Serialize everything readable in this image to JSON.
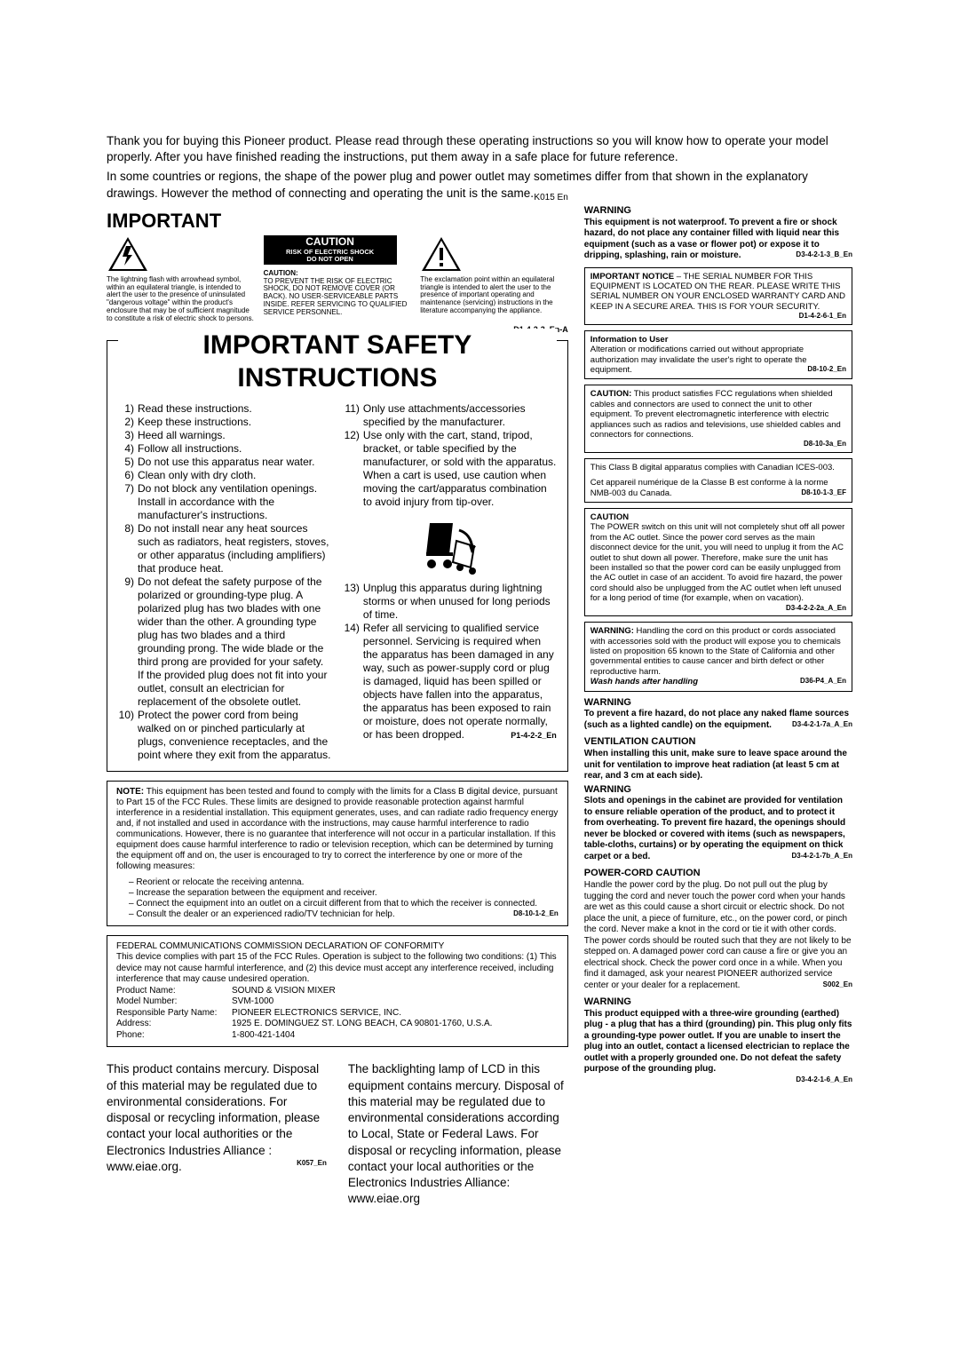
{
  "intro": {
    "p1": "Thank you for buying this Pioneer product. Please read through these operating instructions so you will know how to operate your model properly. After you have finished reading the instructions, put them away in a safe place for future reference.",
    "p2": "In some countries or regions, the shape of the power plug and power outlet may sometimes differ from that shown in the explanatory drawings. However the method of connecting and operating the unit is the same.",
    "code": "K015 En"
  },
  "important": {
    "title": "IMPORTANT",
    "caution_label": "CAUTION",
    "caution_sub1": "RISK OF ELECTRIC SHOCK",
    "caution_sub2": "DO NOT OPEN",
    "tri1": "The lightning flash with arrowhead symbol, within an equilateral triangle, is intended to alert the user to the presence of uninsulated \"dangerous voltage\" within the product's enclosure that may be of sufficient magnitude to constitute a risk of electric shock to persons.",
    "tri2_head": "CAUTION:",
    "tri2": "TO PREVENT THE RISK OF ELECTRIC SHOCK, DO NOT REMOVE COVER (OR BACK). NO USER-SERVICEABLE PARTS INSIDE. REFER SERVICING TO QUALIFIED SERVICE PERSONNEL.",
    "tri3": "The exclamation point within an equilateral triangle is intended to alert the user to the presence of important operating and maintenance (servicing) instructions in the literature accompanying the appliance.",
    "code": "D1-4-2-3_En-A"
  },
  "safety": {
    "title": "IMPORTANT SAFETY INSTRUCTIONS",
    "col1": [
      {
        "n": "1)",
        "t": "Read these instructions."
      },
      {
        "n": "2)",
        "t": "Keep these instructions."
      },
      {
        "n": "3)",
        "t": "Heed all warnings."
      },
      {
        "n": "4)",
        "t": "Follow all instructions."
      },
      {
        "n": "5)",
        "t": "Do not use this apparatus near water."
      },
      {
        "n": "6)",
        "t": "Clean only with dry cloth."
      },
      {
        "n": "7)",
        "t": "Do not block any ventilation openings. Install in accordance with the manufacturer's instructions."
      },
      {
        "n": "8)",
        "t": "Do not install near any heat sources such as radiators, heat registers, stoves, or other apparatus (including amplifiers) that produce heat."
      },
      {
        "n": "9)",
        "t": "Do not defeat the safety purpose of the polarized or grounding-type plug. A polarized plug has two blades with one wider than the other. A grounding type plug has two blades and a third grounding prong. The wide blade or the third prong are provided for your safety. If the provided plug does not fit into your outlet, consult an electrician for replacement of the obsolete outlet."
      },
      {
        "n": "10)",
        "t": "Protect the power cord from being walked on or pinched particularly at plugs, convenience receptacles, and the point where they exit from the apparatus."
      }
    ],
    "col2": [
      {
        "n": "11)",
        "t": "Only use attachments/accessories specified by the manufacturer."
      },
      {
        "n": "12)",
        "t": "Use only with the cart, stand, tripod, bracket, or table specified by the manufacturer, or sold with the apparatus. When a cart is used, use caution when moving the cart/apparatus combination to avoid injury from tip-over."
      },
      {
        "n": "13)",
        "t": "Unplug this apparatus during lightning storms or when unused for long periods of time."
      },
      {
        "n": "14)",
        "t": "Refer all servicing to qualified service personnel. Servicing is required when the apparatus has been damaged in any way, such as power-supply cord or plug is damaged, liquid has been spilled or objects have fallen into the apparatus, the apparatus has been exposed to rain or moisture, does not operate normally, or has been dropped."
      }
    ],
    "code": "P1-4-2-2_En"
  },
  "note": {
    "head": "NOTE:",
    "body": "This equipment has been tested and found to comply with the limits for a Class B digital device, pursuant to Part 15 of the FCC Rules. These limits are designed to provide reasonable protection against harmful interference in a residential installation. This equipment generates, uses, and can radiate radio frequency energy and, if not installed and used in accordance with the instructions, may cause harmful interference to radio communications. However, there is no guarantee that interference will not occur in a particular installation. If this equipment does cause harmful interference to radio or television reception, which can be determined by turning the equipment off and on, the user is encouraged to try to correct the interference by one or more of the following measures:",
    "b1": "– Reorient or relocate the receiving antenna.",
    "b2": "– Increase the separation between the equipment and receiver.",
    "b3": "– Connect the equipment into an outlet on a circuit different from that to which the receiver is connected.",
    "b4": "– Consult the dealer or an experienced radio/TV technician for help.",
    "code": "D8-10-1-2_En"
  },
  "fcc": {
    "title": "FEDERAL COMMUNICATIONS COMMISSION DECLARATION OF CONFORMITY",
    "body": "This device complies with part 15 of the FCC Rules. Operation is subject to the following two conditions: (1) This device may not cause harmful interference, and (2) this device must accept any interference received, including interference that may cause undesired operation.",
    "rows": [
      {
        "l": "Product Name:",
        "v": "SOUND & VISION MIXER"
      },
      {
        "l": "Model Number:",
        "v": "SVM-1000"
      },
      {
        "l": "Responsible Party Name:",
        "v": "PIONEER ELECTRONICS SERVICE, INC."
      },
      {
        "l": "Address:",
        "v": "1925 E. DOMINGUEZ ST. LONG BEACH, CA 90801-1760, U.S.A."
      },
      {
        "l": "Phone:",
        "v": "1-800-421-1404"
      }
    ]
  },
  "mercury": {
    "p1": "This product contains mercury. Disposal of this material may be regulated due to environmental considerations. For disposal or recycling information, please contact your local authorities or the Electronics Industries Alliance : www.eiae.org.",
    "code1": "K057_En",
    "p2": "The backlighting lamp of LCD in this equipment contains mercury. Disposal of this material may be regulated due to environmental considerations according to Local, State or Federal Laws. For disposal or recycling information, please contact your local authorities or the Electronics Industries Alliance: www.eiae.org"
  },
  "right": {
    "warn1_head": "WARNING",
    "warn1": "This equipment is not waterproof. To prevent a fire or shock hazard, do not place any container filled with liquid near this equipment (such as a vase or flower pot) or expose it to dripping, splashing, rain or moisture.",
    "warn1_code": "D3-4-2-1-3_B_En",
    "notice_head": "IMPORTANT NOTICE",
    "notice": "– THE SERIAL NUMBER FOR THIS EQUIPMENT IS LOCATED ON THE REAR. PLEASE WRITE THIS SERIAL NUMBER ON YOUR ENCLOSED WARRANTY CARD AND KEEP IN A SECURE AREA. THIS IS FOR YOUR SECURITY.",
    "notice_code": "D1-4-2-6-1_En",
    "info_head": "Information to User",
    "info": "Alteration or modifications carried out without appropriate authorization may invalidate the user's right to operate the equipment.",
    "info_code": "D8-10-2_En",
    "caution_head": "CAUTION:",
    "caution_body": "This product satisfies FCC regulations when shielded cables and connectors are used to connect the unit to other equipment. To prevent electromagnetic interference with electric appliances such as radios and televisions, use shielded cables and connectors for connections.",
    "caution_code": "D8-10-3a_En",
    "ices_en": "This Class B digital apparatus complies with Canadian ICES-003.",
    "ices_fr": "Cet appareil numérique de la Classe B est conforme à la norme NMB-003 du Canada.",
    "ices_code": "D8-10-1-3_EF",
    "pow_head": "CAUTION",
    "pow_body": "The POWER switch on this unit will not completely shut off all power from the AC outlet. Since the power cord serves as the main disconnect device for the unit, you will need to unplug it from the AC outlet to shut down all power. Therefore, make sure the unit has been installed so that the power cord can be easily unplugged from the AC outlet in case of an accident. To avoid fire hazard, the power cord should also be unplugged from the AC outlet when left unused for a long period of time (for example, when on vacation).",
    "pow_code": "D3-4-2-2-2a_A_En",
    "prop_head": "WARNING:",
    "prop_body": "Handling the cord on this product or cords associated with accessories sold with the product will expose you to chemicals listed on proposition 65 known to the State of California and other governmental entities to cause cancer and birth defect or other reproductive harm.",
    "prop_wash": "Wash hands after handling",
    "prop_code": "D36-P4_A_En",
    "fire_head": "WARNING",
    "fire_body": "To prevent a fire hazard, do not place any naked flame sources (such as a lighted candle) on the equipment.",
    "fire_code": "D3-4-2-1-7a_A_En",
    "vent_head": "VENTILATION CAUTION",
    "vent_body": "When installing this unit, make sure to leave space around the unit for ventilation to improve heat radiation (at least 5 cm at rear, and 3 cm at each side).",
    "vent2_head": "WARNING",
    "vent2_body": "Slots and openings in the cabinet are provided for ventilation to ensure reliable operation of the product, and to protect it from overheating. To prevent fire hazard, the openings should never be blocked or covered with items (such as newspapers, table-cloths, curtains) or by operating the equipment on thick carpet or a bed.",
    "vent2_code": "D3-4-2-1-7b_A_En",
    "cord_head": "POWER-CORD CAUTION",
    "cord_body": "Handle the power cord by the plug. Do not pull out the plug by tugging the cord and never touch the power cord when your hands are wet as this could cause a short circuit or electric shock. Do not place the unit, a piece of furniture, etc., on the power cord, or pinch the cord. Never make a knot in the cord or tie it with other cords. The power cords should be routed such that they are not likely to be stepped on. A damaged power cord can cause a fire or give you an electrical shock. Check the power cord once in a while. When you find it damaged, ask your nearest PIONEER authorized service center or your dealer for a replacement.",
    "cord_code": "S002_En",
    "ground_head": "WARNING",
    "ground_body": "This product equipped with a three-wire grounding (earthed) plug - a plug that has a third (grounding) pin. This plug only fits a grounding-type power outlet. If you are unable to insert the plug into an outlet, contact a licensed electrician to replace the outlet with a properly grounded one. Do not defeat the safety purpose of the grounding plug.",
    "ground_code": "D3-4-2-1-6_A_En"
  }
}
